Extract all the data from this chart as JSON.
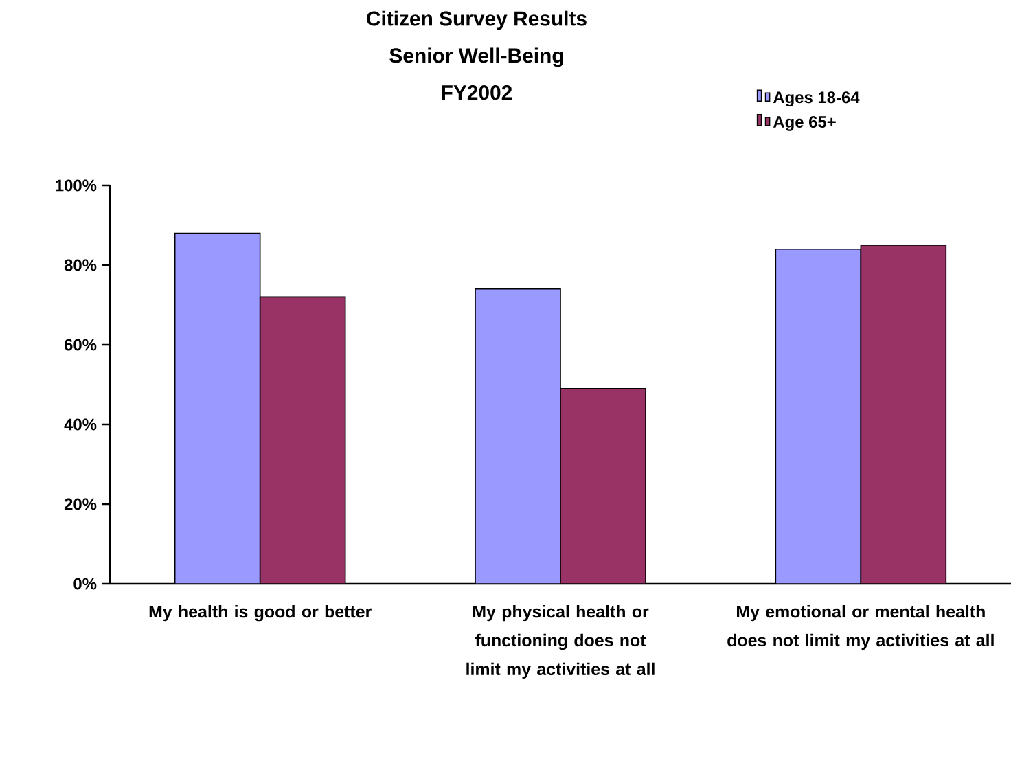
{
  "chart_data": {
    "type": "bar",
    "title": "Citizen Survey Results\nSenior Well-Being\nFY2002",
    "categories": [
      "My health is good or better",
      "My physical health or functioning does not limit my activities at all",
      "My emotional or mental health does not limit my activities at all"
    ],
    "series": [
      {
        "name": "Ages 18-64",
        "color": "#9999ff",
        "values": [
          88,
          74,
          84
        ]
      },
      {
        "name": "Age 65+",
        "color": "#993366",
        "values": [
          72,
          49,
          85
        ]
      }
    ],
    "ylim": [
      0,
      100
    ],
    "yticks": [
      {
        "value": 0,
        "label": "0%"
      },
      {
        "value": 20,
        "label": "20%"
      },
      {
        "value": 40,
        "label": "40%"
      },
      {
        "value": 60,
        "label": "60%"
      },
      {
        "value": 80,
        "label": "80%"
      },
      {
        "value": 100,
        "label": "100%"
      }
    ],
    "grid": false,
    "legend": "top right"
  }
}
